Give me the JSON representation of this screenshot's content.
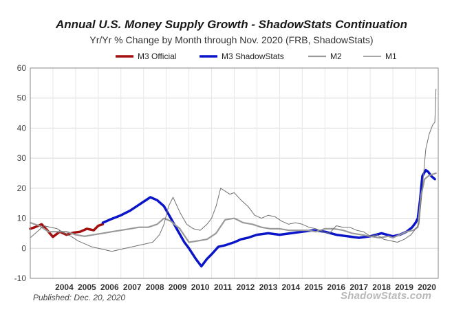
{
  "chart_data": {
    "type": "line",
    "title": "Annual U.S. Money Supply Growth - ShadowStats Continuation",
    "subtitle": "Yr/Yr % Change by Month through Nov. 2020  (FRB, ShadowStats)",
    "footnote": "Published: Dec. 20, 2020",
    "watermark": "ShadowStats.com",
    "xlabel": "",
    "ylabel": "",
    "xlim": [
      2003.0,
      2021.0
    ],
    "ylim": [
      -10,
      60
    ],
    "yticks": [
      -10,
      0,
      10,
      20,
      30,
      40,
      50,
      60
    ],
    "xticks": [
      "2004",
      "2005",
      "2006",
      "2007",
      "2008",
      "2009",
      "2010",
      "2011",
      "2012",
      "2013",
      "2014",
      "2015",
      "2016",
      "2017",
      "2018",
      "2019",
      "2020"
    ],
    "grid": true,
    "legend": "top",
    "series": [
      {
        "name": "M3 Official",
        "color": "#a30f0f",
        "width": 3.5,
        "x": [
          2003.0,
          2003.2,
          2003.5,
          2003.75,
          2004.0,
          2004.3,
          2004.6,
          2004.9,
          2005.2,
          2005.5,
          2005.8,
          2006.0,
          2006.2
        ],
        "y": [
          6.5,
          7.0,
          8.0,
          6.0,
          3.8,
          5.5,
          4.5,
          5.2,
          5.5,
          6.5,
          6.0,
          7.5,
          8.0
        ]
      },
      {
        "name": "M3 ShadowStats",
        "color": "#0a14c8",
        "width": 3.5,
        "x": [
          2006.2,
          2006.5,
          2007.0,
          2007.4,
          2007.7,
          2008.0,
          2008.3,
          2008.6,
          2008.9,
          2009.2,
          2009.5,
          2009.8,
          2010.0,
          2010.3,
          2010.55,
          2010.8,
          2011.0,
          2011.3,
          2011.6,
          2012.0,
          2012.3,
          2012.6,
          2013.0,
          2013.5,
          2014.0,
          2014.5,
          2015.0,
          2015.5,
          2016.0,
          2016.5,
          2017.0,
          2017.5,
          2018.0,
          2018.5,
          2019.0,
          2019.3,
          2019.6,
          2019.85,
          2020.0,
          2020.1,
          2020.2,
          2020.3,
          2020.45,
          2020.55,
          2020.7,
          2020.85
        ],
        "y": [
          8.5,
          9.5,
          11.0,
          12.5,
          14.0,
          15.5,
          17.0,
          16.0,
          14.0,
          10.0,
          6.0,
          2.0,
          0.0,
          -3.5,
          -6.0,
          -3.5,
          -2.0,
          0.5,
          1.0,
          2.0,
          3.0,
          3.5,
          4.5,
          5.0,
          4.5,
          5.0,
          5.5,
          6.0,
          5.5,
          4.5,
          4.0,
          3.5,
          4.0,
          5.0,
          4.0,
          4.5,
          5.5,
          7.0,
          8.5,
          10.0,
          16.0,
          24.0,
          26.0,
          25.5,
          24.0,
          23.0
        ]
      },
      {
        "name": "M2",
        "color": "#9a9a9a",
        "width": 2.2,
        "x": [
          2003.0,
          2003.4,
          2003.8,
          2004.2,
          2004.6,
          2005.0,
          2005.4,
          2005.8,
          2006.2,
          2006.6,
          2007.0,
          2007.4,
          2007.8,
          2008.2,
          2008.6,
          2008.9,
          2009.2,
          2009.6,
          2010.0,
          2010.4,
          2010.8,
          2011.2,
          2011.6,
          2012.0,
          2012.4,
          2012.8,
          2013.2,
          2013.6,
          2014.0,
          2014.4,
          2014.8,
          2015.2,
          2015.6,
          2016.0,
          2016.4,
          2016.8,
          2017.2,
          2017.6,
          2018.0,
          2018.4,
          2018.8,
          2019.0,
          2019.3,
          2019.6,
          2019.9,
          2020.1,
          2020.25,
          2020.4,
          2020.55,
          2020.7,
          2020.9
        ],
        "y": [
          8.5,
          7.5,
          5.5,
          5.5,
          5.5,
          4.5,
          4.0,
          4.5,
          5.0,
          5.5,
          6.0,
          6.5,
          7.0,
          7.0,
          8.0,
          10.0,
          9.0,
          6.5,
          2.0,
          2.5,
          3.0,
          5.0,
          9.5,
          10.0,
          8.5,
          8.0,
          7.0,
          6.5,
          6.5,
          6.0,
          6.0,
          6.0,
          5.5,
          6.5,
          6.5,
          6.0,
          5.0,
          4.5,
          4.0,
          3.5,
          4.0,
          3.5,
          4.5,
          5.5,
          6.0,
          7.0,
          18.0,
          23.0,
          24.0,
          24.5,
          25.0
        ]
      },
      {
        "name": "M1",
        "color": "#707070",
        "width": 1.0,
        "x": [
          2003.0,
          2003.3,
          2003.6,
          2003.9,
          2004.2,
          2004.5,
          2004.8,
          2005.1,
          2005.4,
          2005.7,
          2006.0,
          2006.3,
          2006.6,
          2006.9,
          2007.2,
          2007.5,
          2007.8,
          2008.1,
          2008.4,
          2008.7,
          2008.9,
          2009.1,
          2009.3,
          2009.6,
          2009.9,
          2010.2,
          2010.5,
          2010.8,
          2011.0,
          2011.2,
          2011.4,
          2011.6,
          2011.8,
          2012.0,
          2012.3,
          2012.6,
          2012.9,
          2013.2,
          2013.5,
          2013.8,
          2014.1,
          2014.4,
          2014.7,
          2015.0,
          2015.3,
          2015.6,
          2015.9,
          2016.2,
          2016.5,
          2016.8,
          2017.1,
          2017.4,
          2017.7,
          2018.0,
          2018.3,
          2018.6,
          2018.9,
          2019.2,
          2019.5,
          2019.8,
          2020.0,
          2020.15,
          2020.3,
          2020.45,
          2020.6,
          2020.75,
          2020.85,
          2020.9
        ],
        "y": [
          3.5,
          5.5,
          7.5,
          7.0,
          6.5,
          5.0,
          4.0,
          2.5,
          1.5,
          0.5,
          0.0,
          -0.5,
          -1.0,
          -0.5,
          0.0,
          0.5,
          1.0,
          1.5,
          2.0,
          4.5,
          8.0,
          14.0,
          17.0,
          12.0,
          8.0,
          6.5,
          6.0,
          8.0,
          10.0,
          14.0,
          20.0,
          19.0,
          18.0,
          18.5,
          16.0,
          14.0,
          11.0,
          10.0,
          11.0,
          10.5,
          9.0,
          8.0,
          8.5,
          8.0,
          7.0,
          6.5,
          5.5,
          5.0,
          7.5,
          7.0,
          7.0,
          6.0,
          5.5,
          4.0,
          4.5,
          3.0,
          2.5,
          2.0,
          3.0,
          4.5,
          6.5,
          8.0,
          20.0,
          33.0,
          38.0,
          41.0,
          42.0,
          53.0
        ]
      }
    ]
  }
}
